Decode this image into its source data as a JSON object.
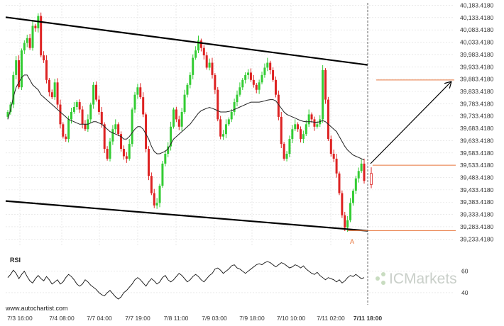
{
  "chart_data": {
    "type": "candlestick",
    "ylim": [
      39208.418,
      40193.418
    ],
    "y_ticks": [
      "40,183.4180",
      "40,133.4180",
      "40,083.4180",
      "40,033.4180",
      "39,983.4180",
      "39,933.4180",
      "39,883.4180",
      "39,833.4180",
      "39,783.4180",
      "39,733.4180",
      "39,683.4180",
      "39,633.4180",
      "39,583.4180",
      "39,533.4180",
      "39,483.4180",
      "39,433.4180",
      "39,383.4180",
      "39,333.4180",
      "39,283.4180",
      "39,233.4180"
    ],
    "y_tick_values": [
      40183.418,
      40133.418,
      40083.418,
      40033.418,
      39983.418,
      39933.418,
      39883.418,
      39833.418,
      39783.418,
      39733.418,
      39683.418,
      39633.418,
      39583.418,
      39533.418,
      39483.418,
      39433.418,
      39383.418,
      39333.418,
      39283.418,
      39233.418
    ],
    "x_ticks": [
      "7/3 16:00",
      "7/4 08:00",
      "7/7 04:00",
      "7/7 19:00",
      "7/8 11:00",
      "7/9 03:00",
      "7/9 18:00",
      "7/10 10:00",
      "7/11 02:00",
      "7/11 18:00"
    ],
    "highlight_tick": "7/11 18:00",
    "n_bars": 130,
    "closes": [
      39750,
      39780,
      39900,
      39960,
      39850,
      40000,
      40030,
      40050,
      40010,
      40100,
      40090,
      40140,
      39980,
      39960,
      39880,
      39830,
      39810,
      39870,
      39780,
      39700,
      39650,
      39640,
      39720,
      39750,
      39770,
      39790,
      39760,
      39700,
      39680,
      39720,
      39780,
      39860,
      39800,
      39750,
      39700,
      39600,
      39560,
      39630,
      39680,
      39700,
      39660,
      39600,
      39570,
      39560,
      39620,
      39760,
      39820,
      39850,
      39810,
      39740,
      39600,
      39490,
      39420,
      39370,
      39380,
      39450,
      39540,
      39580,
      39610,
      39690,
      39760,
      39720,
      39690,
      39750,
      39820,
      39860,
      39900,
      39970,
      40000,
      40040,
      40010,
      39980,
      39930,
      39950,
      39900,
      39840,
      39720,
      39650,
      39660,
      39700,
      39720,
      39750,
      39790,
      39820,
      39850,
      39880,
      39900,
      39910,
      39880,
      39860,
      39840,
      39870,
      39900,
      39930,
      39950,
      39920,
      39880,
      39820,
      39730,
      39620,
      39560,
      39580,
      39640,
      39680,
      39700,
      39680,
      39640,
      39660,
      39700,
      39740,
      39720,
      39690,
      39700,
      39720,
      39920,
      39800,
      39640,
      39580,
      39560,
      39500,
      39420,
      39330,
      39280,
      39310,
      39380,
      39430,
      39480,
      39510,
      39540,
      39470
    ],
    "sma": [
      39720,
      39760,
      39810,
      39850,
      39870,
      39890,
      39900,
      39900,
      39880,
      39860,
      39850,
      39840,
      39820,
      39810,
      39800,
      39790,
      39780,
      39770,
      39760,
      39750,
      39740,
      39730,
      39720,
      39715,
      39710,
      39705,
      39700,
      39700,
      39700,
      39700,
      39705,
      39710,
      39710,
      39705,
      39700,
      39690,
      39680,
      39670,
      39665,
      39660,
      39655,
      39650,
      39640,
      39640,
      39650,
      39665,
      39680,
      39690,
      39690,
      39680,
      39660,
      39640,
      39610,
      39590,
      39580,
      39580,
      39585,
      39590,
      39600,
      39620,
      39640,
      39650,
      39660,
      39670,
      39680,
      39690,
      39700,
      39715,
      39730,
      39745,
      39755,
      39760,
      39765,
      39768,
      39765,
      39760,
      39755,
      39750,
      39750,
      39750,
      39752,
      39755,
      39760,
      39765,
      39770,
      39775,
      39780,
      39785,
      39790,
      39790,
      39790,
      39790,
      39792,
      39795,
      39798,
      39800,
      39800,
      39795,
      39780,
      39765,
      39750,
      39740,
      39735,
      39730,
      39725,
      39720,
      39715,
      39712,
      39710,
      39710,
      39710,
      39708,
      39708,
      39710,
      39715,
      39710,
      39700,
      39690,
      39680,
      39670,
      39650,
      39630,
      39610,
      39595,
      39585,
      39575,
      39570,
      39565,
      39560,
      39555
    ],
    "channel_upper": {
      "start": 40135,
      "end": 39941
    },
    "channel_lower": {
      "start": 39388,
      "end": 39267
    },
    "resistance_level": 39533.418,
    "support_level": 39268,
    "target_level": 39880,
    "point_label": "A",
    "rsi": {
      "label": "RSI",
      "levels": [
        "60",
        "40"
      ],
      "values": [
        54,
        57,
        61,
        58,
        53,
        57,
        60,
        55,
        51,
        49,
        53,
        56,
        53,
        51,
        55,
        52,
        48,
        50,
        52,
        48,
        50,
        54,
        57,
        55,
        52,
        48,
        46,
        48,
        52,
        50,
        47,
        45,
        43,
        40,
        38,
        37,
        40,
        42,
        39,
        36,
        34,
        36,
        40,
        42,
        45,
        48,
        52,
        54,
        52,
        49,
        46,
        50,
        53,
        51,
        48,
        50,
        54,
        56,
        52,
        50,
        52,
        55,
        58,
        56,
        53,
        50,
        52,
        55,
        57,
        55,
        52,
        50,
        53,
        56,
        58,
        62,
        63,
        61,
        58,
        60,
        62,
        65,
        66,
        63,
        62,
        60,
        58,
        60,
        62,
        64,
        66,
        67,
        66,
        68,
        69,
        68,
        66,
        64,
        66,
        68,
        67,
        65,
        63,
        64,
        66,
        65,
        63,
        65,
        62,
        60,
        58,
        57,
        59,
        56,
        54,
        52,
        54,
        53,
        52,
        50,
        52,
        49,
        51,
        54,
        56,
        55,
        57,
        55,
        53,
        54
      ]
    },
    "watermark_left": "www.autochartist.com",
    "watermark_right": "ICMarkets"
  }
}
